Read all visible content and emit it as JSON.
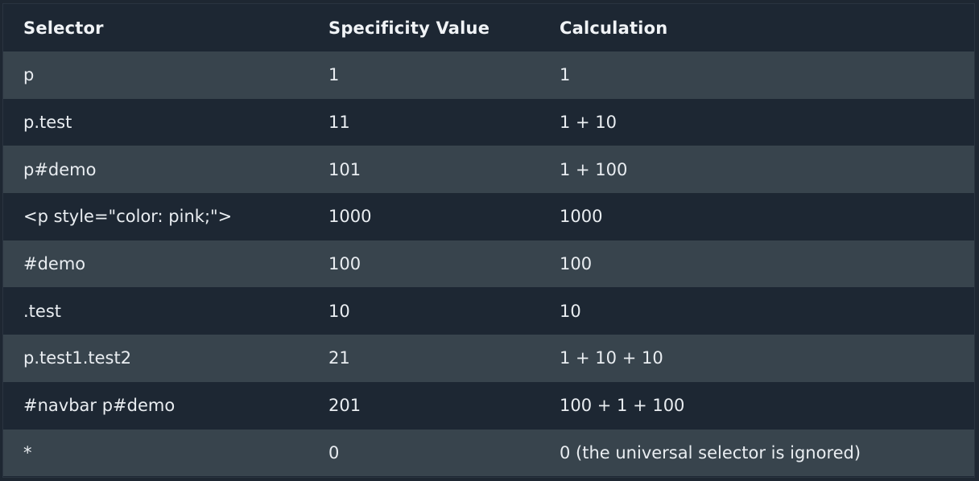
{
  "table": {
    "headers": [
      "Selector",
      "Specificity Value",
      "Calculation"
    ],
    "rows": [
      {
        "selector": "p",
        "value": "1",
        "calculation": "1"
      },
      {
        "selector": "p.test",
        "value": "11",
        "calculation": "1 + 10"
      },
      {
        "selector": "p#demo",
        "value": "101",
        "calculation": "1 + 100"
      },
      {
        "selector": "<p style=\"color: pink;\">",
        "value": "1000",
        "calculation": "1000"
      },
      {
        "selector": "#demo",
        "value": "100",
        "calculation": "100"
      },
      {
        "selector": ".test",
        "value": "10",
        "calculation": "10"
      },
      {
        "selector": "p.test1.test2",
        "value": "21",
        "calculation": "1 + 10 + 10"
      },
      {
        "selector": "#navbar p#demo",
        "value": "201",
        "calculation": "100 + 1 + 100"
      },
      {
        "selector": "*",
        "value": "0",
        "calculation": "0 (the universal selector is ignored)"
      }
    ]
  },
  "colors": {
    "header_bg": "#1d2733",
    "row_light": "#38444d",
    "row_dark": "#1d2733",
    "text": "#e9edf1"
  }
}
